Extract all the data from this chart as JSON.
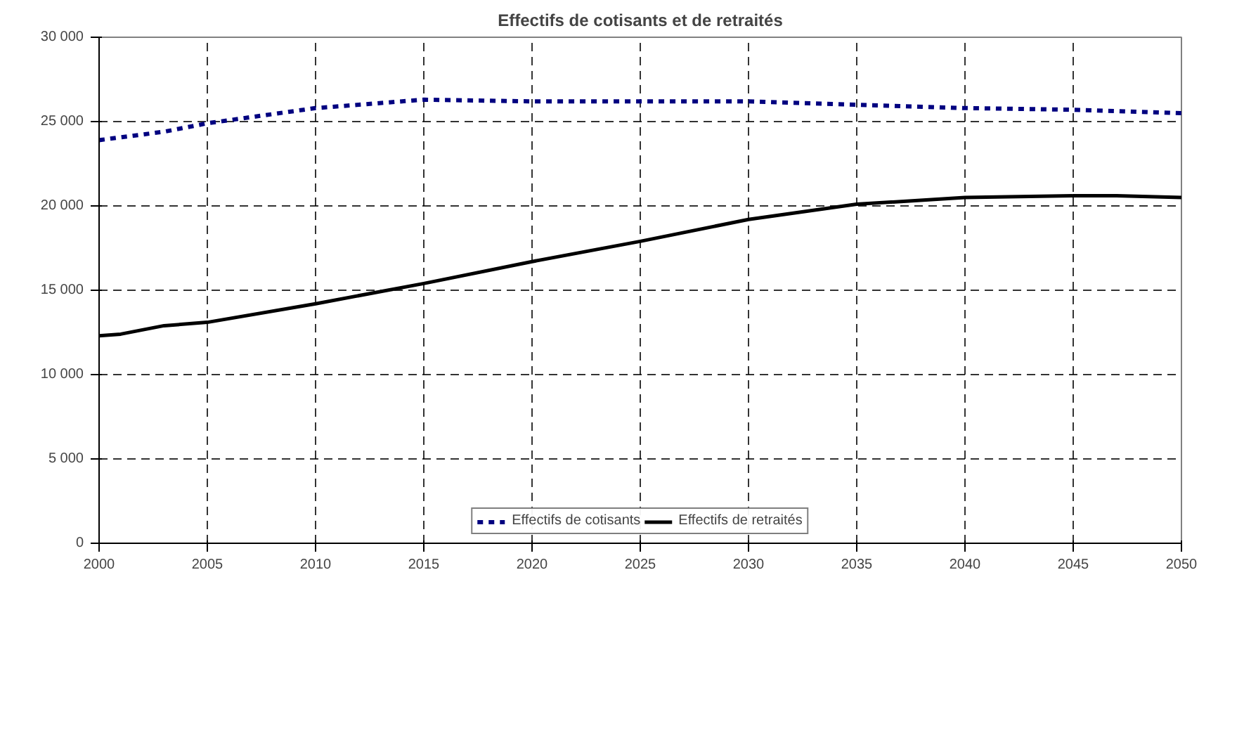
{
  "chart_data": {
    "type": "line",
    "title": "Effectifs de cotisants et de retraités",
    "xlim": [
      2000,
      2050
    ],
    "xticks": [
      2000,
      2005,
      2010,
      2015,
      2020,
      2025,
      2030,
      2035,
      2040,
      2045,
      2050
    ],
    "ylim": [
      0,
      30000
    ],
    "yticks": [
      {
        "value": 0,
        "label": "0"
      },
      {
        "value": 5000,
        "label": "5 000"
      },
      {
        "value": 10000,
        "label": "10 000"
      },
      {
        "value": 15000,
        "label": "15 000"
      },
      {
        "value": 20000,
        "label": "20 000"
      },
      {
        "value": 25000,
        "label": "25 000"
      },
      {
        "value": 30000,
        "label": "30 000"
      }
    ],
    "grid": true,
    "legend": "bottom",
    "series": [
      {
        "name": "Effectifs de cotisants",
        "color": "#000080",
        "line_style": "dashed",
        "x": [
          2000,
          2003,
          2005,
          2010,
          2015,
          2020,
          2025,
          2030,
          2035,
          2040,
          2045,
          2050
        ],
        "values": [
          23900,
          24400,
          24900,
          25800,
          26300,
          26200,
          26200,
          26200,
          26000,
          25800,
          25700,
          25500
        ]
      },
      {
        "name": "Effectifs de retraités",
        "color": "#000000",
        "line_style": "solid",
        "x": [
          2000,
          2001,
          2003,
          2005,
          2010,
          2015,
          2020,
          2025,
          2030,
          2035,
          2040,
          2045,
          2047,
          2050
        ],
        "values": [
          12300,
          12400,
          12900,
          13100,
          14200,
          15400,
          16700,
          17900,
          19200,
          20100,
          20500,
          20600,
          20600,
          20500
        ]
      }
    ]
  }
}
